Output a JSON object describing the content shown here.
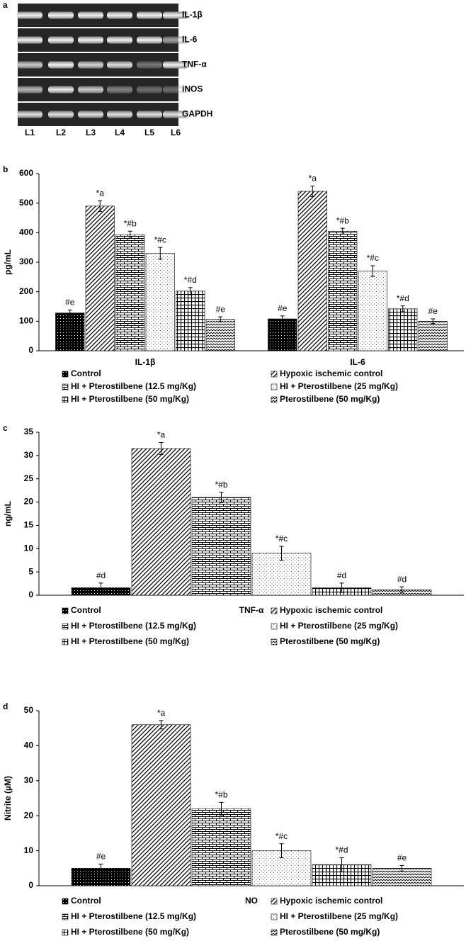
{
  "gel": {
    "panel_label": "a",
    "bands": [
      "IL-1β",
      "IL-6",
      "TNF-α",
      "iNOS",
      "GAPDH"
    ],
    "lanes": [
      "L1",
      "L2",
      "L3",
      "L4",
      "L5",
      "L6"
    ]
  },
  "chart_data": [
    {
      "type": "bar",
      "panel_label": "b",
      "y_label": "pg/mL",
      "categories": [
        "IL-1β",
        "IL-6"
      ],
      "ylim": [
        0,
        600
      ],
      "yticks": [
        0,
        100,
        200,
        300,
        400,
        500,
        600
      ],
      "series": [
        {
          "name": "Control",
          "color": "#000000",
          "pattern": "crosshatch",
          "values": [
            128,
            108
          ],
          "errors": [
            10,
            10
          ],
          "annotations": [
            "#e",
            "#e"
          ]
        },
        {
          "name": "Hypoxic ischemic control",
          "color": "#000000",
          "pattern": "diagonal",
          "values": [
            490,
            540
          ],
          "errors": [
            18,
            18
          ],
          "annotations": [
            "*a",
            "*a"
          ]
        },
        {
          "name": "HI + Pterostilbene (12.5 mg/Kg)",
          "color": "#000000",
          "pattern": "brick",
          "values": [
            393,
            405
          ],
          "errors": [
            12,
            10
          ],
          "annotations": [
            "*#b",
            "*#b"
          ]
        },
        {
          "name": "HI + Pterostilbene (25 mg/Kg)",
          "color": "#000000",
          "pattern": "dots",
          "values": [
            330,
            270
          ],
          "errors": [
            20,
            18
          ],
          "annotations": [
            "*#c",
            "*#c"
          ]
        },
        {
          "name": "HI + Pterostilbene (50 mg/Kg)",
          "color": "#000000",
          "pattern": "grid",
          "values": [
            202,
            142
          ],
          "errors": [
            12,
            10
          ],
          "annotations": [
            "*#d",
            "*#d"
          ]
        },
        {
          "name": "Pterostilbene (50 mg/Kg)",
          "color": "#000000",
          "pattern": "wave",
          "values": [
            107,
            100
          ],
          "errors": [
            8,
            8
          ],
          "annotations": [
            "#e",
            "#e"
          ]
        }
      ]
    },
    {
      "type": "bar",
      "panel_label": "c",
      "y_label": "ng/mL",
      "categories": [
        "TNF-α"
      ],
      "ylim": [
        0,
        35
      ],
      "yticks": [
        0,
        5,
        10,
        15,
        20,
        25,
        30,
        35
      ],
      "series": [
        {
          "name": "Control",
          "color": "#000000",
          "pattern": "crosshatch",
          "values": [
            1.6
          ],
          "errors": [
            1
          ],
          "annotations": [
            "#d"
          ]
        },
        {
          "name": "Hypoxic ischemic control",
          "color": "#000000",
          "pattern": "diagonal",
          "values": [
            31.5
          ],
          "errors": [
            1.3
          ],
          "annotations": [
            "*a"
          ]
        },
        {
          "name": "HI + Pterostilbene (12.5 mg/Kg)",
          "color": "#000000",
          "pattern": "brick",
          "values": [
            21
          ],
          "errors": [
            1.1
          ],
          "annotations": [
            "*#b"
          ]
        },
        {
          "name": "HI + Pterostilbene (25 mg/Kg)",
          "color": "#000000",
          "pattern": "dots",
          "values": [
            9
          ],
          "errors": [
            1.5
          ],
          "annotations": [
            "*#c"
          ]
        },
        {
          "name": "HI + Pterostilbene (50 mg/Kg)",
          "color": "#000000",
          "pattern": "grid",
          "values": [
            1.6
          ],
          "errors": [
            1
          ],
          "annotations": [
            "#d"
          ]
        },
        {
          "name": "Pterostilbene (50 mg/Kg)",
          "color": "#000000",
          "pattern": "wave",
          "values": [
            1.2
          ],
          "errors": [
            0.6
          ],
          "annotations": [
            "#d"
          ]
        }
      ]
    },
    {
      "type": "bar",
      "panel_label": "d",
      "y_label": "Nitrite (µM)",
      "categories": [
        "NO"
      ],
      "ylim": [
        0,
        50
      ],
      "yticks": [
        0,
        10,
        20,
        30,
        40,
        50
      ],
      "series": [
        {
          "name": "Control",
          "color": "#000000",
          "pattern": "crosshatch",
          "values": [
            5
          ],
          "errors": [
            1.2
          ],
          "annotations": [
            "#e"
          ]
        },
        {
          "name": "Hypoxic ischemic control",
          "color": "#000000",
          "pattern": "diagonal",
          "values": [
            46
          ],
          "errors": [
            1.2
          ],
          "annotations": [
            "*a"
          ]
        },
        {
          "name": "HI + Pterostilbene (12.5 mg/Kg)",
          "color": "#000000",
          "pattern": "brick",
          "values": [
            22
          ],
          "errors": [
            1.8
          ],
          "annotations": [
            "*#b"
          ]
        },
        {
          "name": "HI + Pterostilbene (25 mg/Kg)",
          "color": "#000000",
          "pattern": "dots",
          "values": [
            10
          ],
          "errors": [
            2
          ],
          "annotations": [
            "*#c"
          ]
        },
        {
          "name": "HI + Pterostilbene (50 mg/Kg)",
          "color": "#000000",
          "pattern": "grid",
          "values": [
            6
          ],
          "errors": [
            2
          ],
          "annotations": [
            "*#d"
          ]
        },
        {
          "name": "Pterostilbene (50 mg/Kg)",
          "color": "#000000",
          "pattern": "wave",
          "values": [
            5
          ],
          "errors": [
            0.8
          ],
          "annotations": [
            "#e"
          ]
        }
      ]
    }
  ]
}
